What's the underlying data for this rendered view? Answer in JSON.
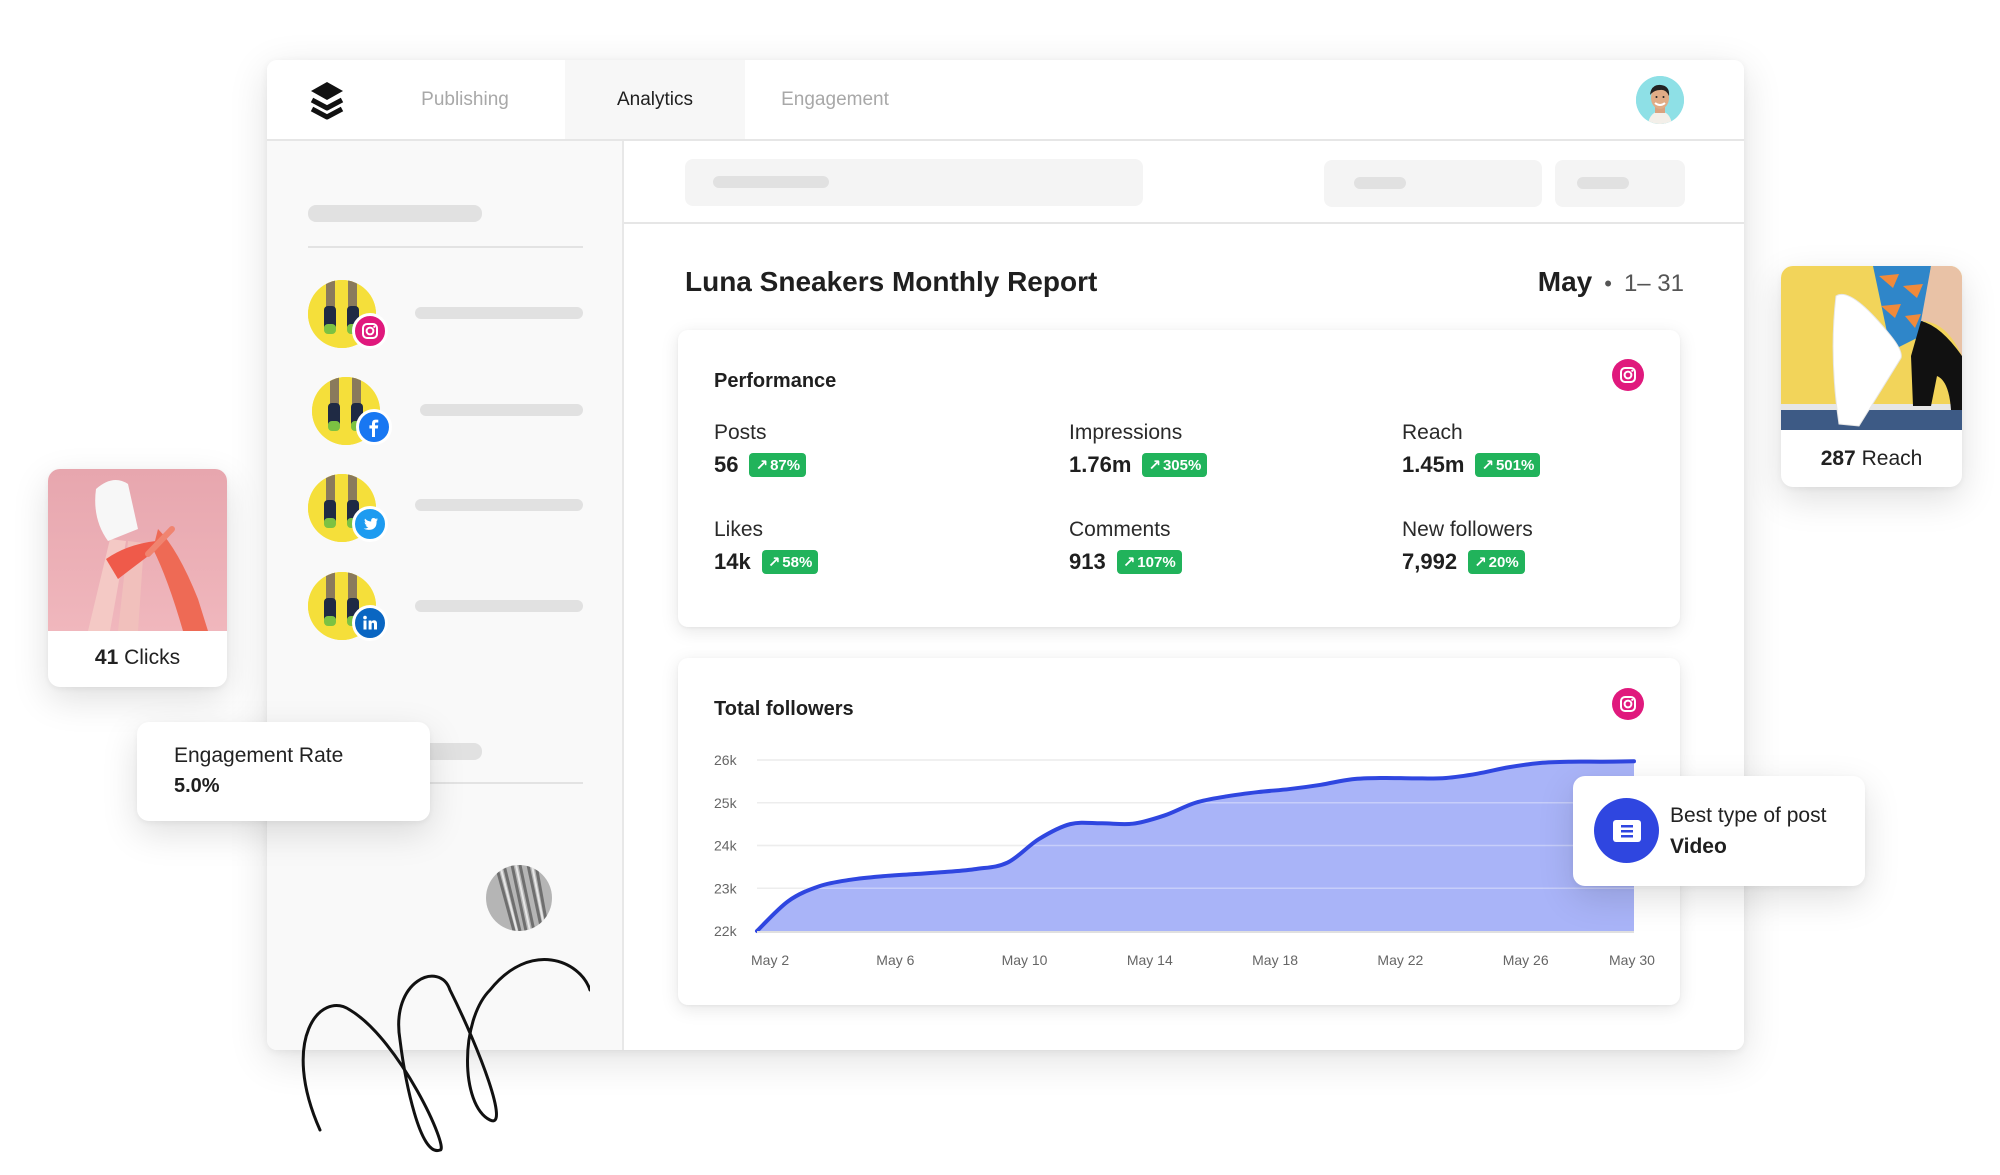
{
  "app": {
    "logo_icon": "buffer-stack-icon",
    "tabs": [
      {
        "label": "Publishing",
        "active": false
      },
      {
        "label": "Analytics",
        "active": true
      },
      {
        "label": "Engagement",
        "active": false
      }
    ],
    "user_avatar": "user-avatar"
  },
  "sidebar": {
    "accounts": [
      {
        "network": "instagram",
        "badge_color": "#e0197d"
      },
      {
        "network": "facebook",
        "badge_color": "#1877f2"
      },
      {
        "network": "twitter",
        "badge_color": "#1d9bf0"
      },
      {
        "network": "linkedin",
        "badge_color": "#0a66c2"
      }
    ]
  },
  "report": {
    "title": "Luna Sneakers Monthly Report",
    "month": "May",
    "separator": "•",
    "days": "1– 31"
  },
  "performance": {
    "title": "Performance",
    "network_icon": "instagram-icon",
    "metrics": [
      {
        "label": "Posts",
        "value": "56",
        "change": "87%"
      },
      {
        "label": "Impressions",
        "value": "1.76m",
        "change": "305%"
      },
      {
        "label": "Reach",
        "value": "1.45m",
        "change": "501%"
      },
      {
        "label": "Likes",
        "value": "14k",
        "change": "58%"
      },
      {
        "label": "Comments",
        "value": "913",
        "change": "107%"
      },
      {
        "label": "New followers",
        "value": "7,992",
        "change": "20%"
      }
    ],
    "change_arrow": "↗"
  },
  "followers": {
    "title": "Total followers",
    "network_icon": "instagram-icon"
  },
  "best_post": {
    "label": "Best type of post",
    "value": "Video"
  },
  "floating": {
    "reach": {
      "value": "287",
      "label": "Reach"
    },
    "clicks": {
      "value": "41",
      "label": "Clicks"
    },
    "engagement": {
      "label": "Engagement Rate",
      "value": "5.0%"
    }
  },
  "colors": {
    "accent_blue": "#2f46e0",
    "area_fill": "#a9b4f8",
    "badge_green": "#21b35b",
    "instagram_pink": "#e0197d"
  },
  "chart_data": {
    "type": "area",
    "title": "Total followers",
    "xlabel": "",
    "ylabel": "",
    "x_ticks": [
      "May 2",
      "May 6",
      "May 10",
      "May 14",
      "May 18",
      "May 22",
      "May 26",
      "May 30"
    ],
    "y_ticks": [
      "22k",
      "23k",
      "24k",
      "25k",
      "26k"
    ],
    "ylim": [
      22000,
      26000
    ],
    "grid": true,
    "legend": "none",
    "x": [
      2,
      3,
      4,
      5,
      6,
      7,
      8,
      9,
      10,
      11,
      12,
      13,
      14,
      15,
      16,
      17,
      18,
      19,
      20,
      21,
      22,
      23,
      24,
      25,
      26,
      27,
      28,
      29,
      30
    ],
    "series": [
      {
        "name": "Total followers",
        "values": [
          22000,
          22700,
          23050,
          23200,
          23280,
          23330,
          23380,
          23450,
          23600,
          24150,
          24500,
          24520,
          24510,
          24700,
          25000,
          25150,
          25250,
          25320,
          25420,
          25550,
          25580,
          25570,
          25580,
          25680,
          25830,
          25930,
          25960,
          25960,
          25970
        ]
      }
    ]
  }
}
